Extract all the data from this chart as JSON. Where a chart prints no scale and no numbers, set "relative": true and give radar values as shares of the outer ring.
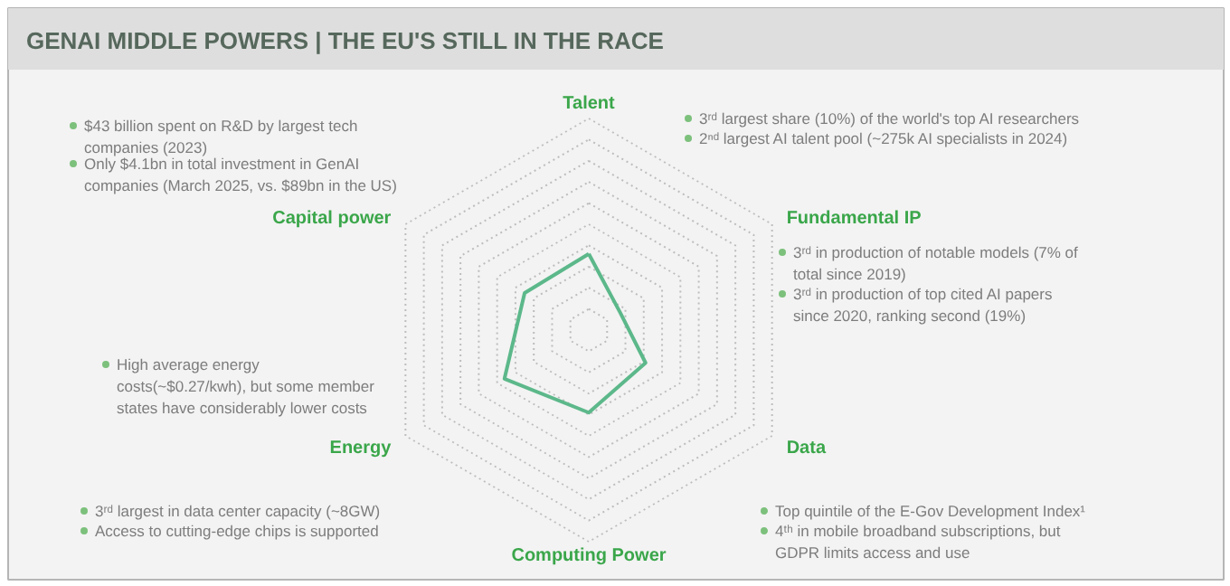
{
  "chart_data": {
    "type": "radar",
    "title": "GENAI MIDDLE POWERS | THE EU'S STILL IN THE RACE",
    "categories": [
      "Talent",
      "Fundamental IP",
      "Data",
      "Computing Power",
      "Energy",
      "Capital power"
    ],
    "relative": true,
    "grid": true,
    "series": [
      {
        "color": "#5cb88a",
        "values": [
          0.36,
          0.17,
          0.31,
          0.39,
          0.46,
          0.35
        ]
      }
    ],
    "annotations": [
      "$43 billion spent on R&D by largest tech\ncompanies (2023)",
      "Only $4.1bn in total investment in GenAI\ncompanies (March 2025, vs. $89bn in the US)",
      "3ʳᵈ largest share (10%) of the world's top AI researchers",
      "2ⁿᵈ largest AI talent pool (~275k AI specialists in 2024)",
      "3ʳᵈ in production of notable models (7% of\ntotal since 2019)",
      "3ʳᵈ in production of top cited AI papers\nsince 2020, ranking second (19%)",
      "High average energy\ncosts(~$0.27/kwh), but some member\nstates have considerably lower costs",
      "3ʳᵈ largest in data center capacity (~8GW)",
      "Access to cutting-edge chips is supported",
      "Top quintile of the E-Gov Development Index¹",
      "4ᵗʰ in mobile broadband subscriptions, but\nGDPR limits access and use"
    ]
  }
}
